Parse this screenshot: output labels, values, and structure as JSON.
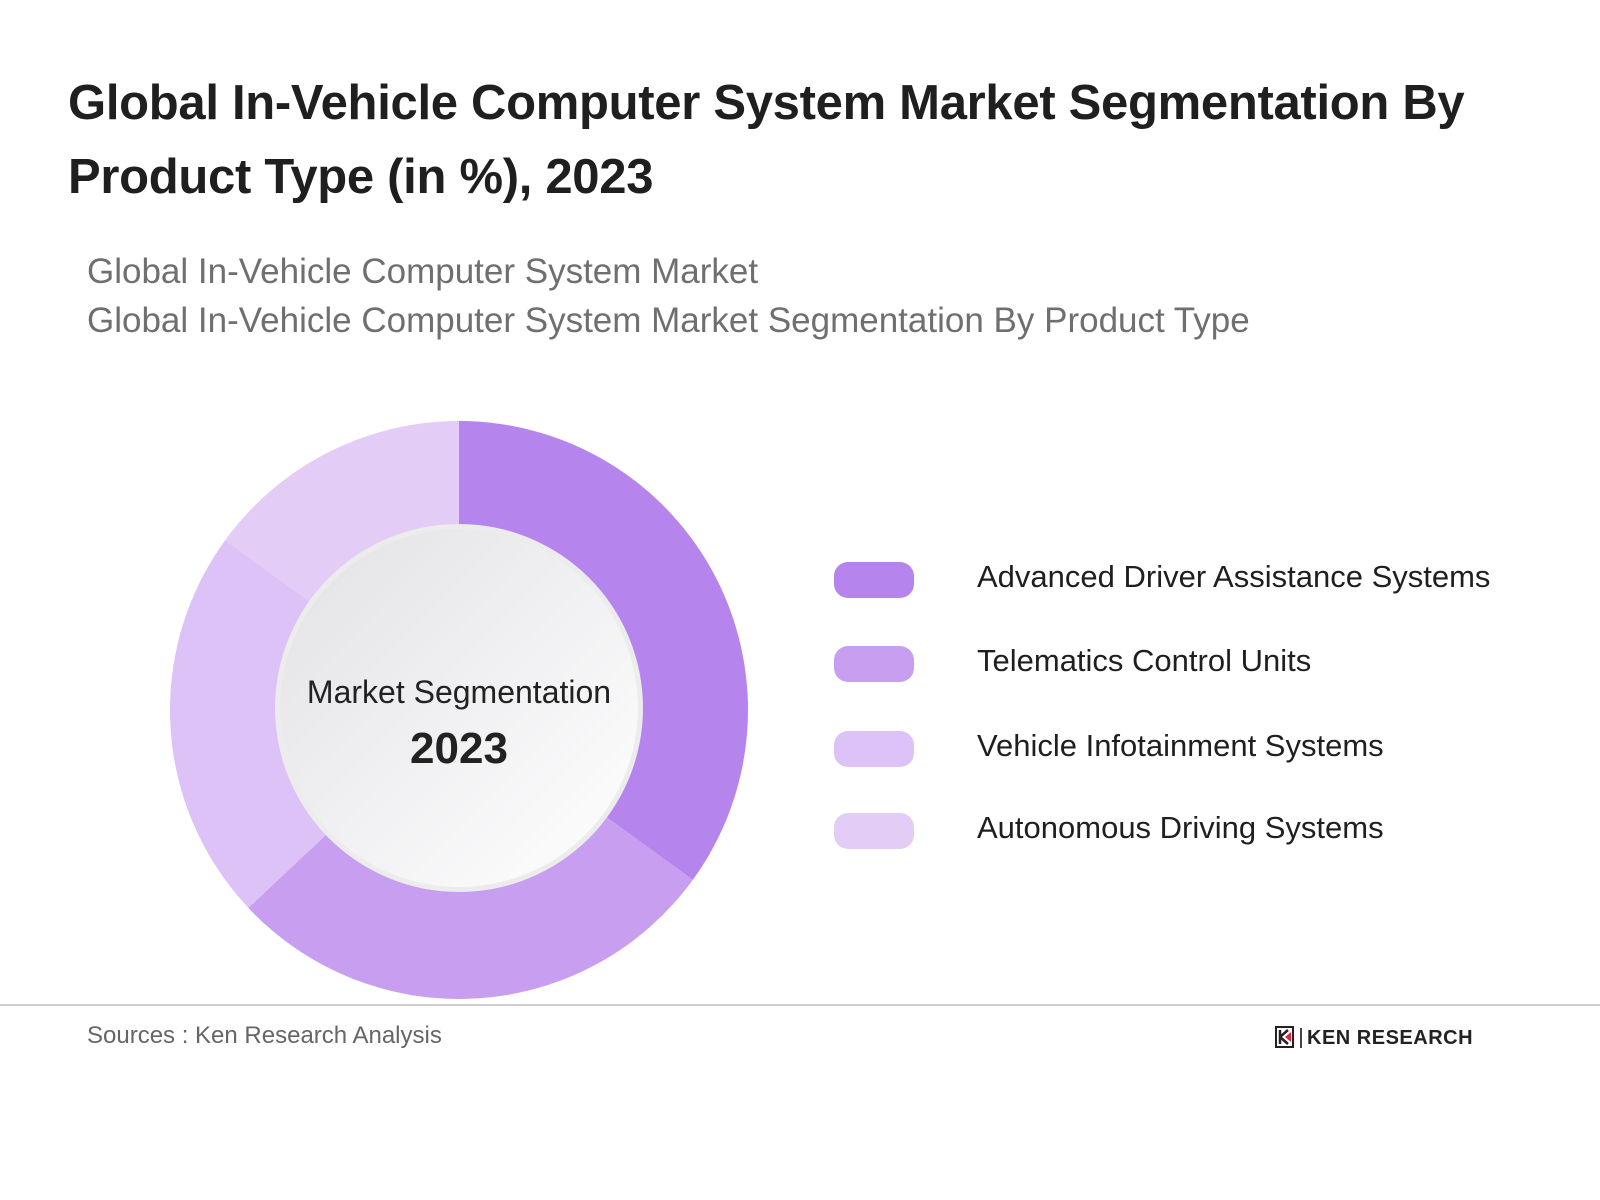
{
  "title": "Global In-Vehicle Computer System Market Segmentation By Product Type (in %), 2023",
  "subtitle_lines": [
    "Global In-Vehicle Computer System Market",
    "Global In-Vehicle Computer System Market Segmentation By Product Type"
  ],
  "chart_data": {
    "type": "pie",
    "variant": "donut",
    "center_label": "Market Segmentation",
    "center_year": "2023",
    "categories": [
      "Advanced Driver Assistance Systems",
      "Telematics Control Units",
      "Vehicle Infotainment Systems",
      "Autonomous Driving Systems"
    ],
    "values": [
      35,
      28,
      22,
      15
    ],
    "colors": [
      "#b584ec",
      "#c79ef0",
      "#dcc2f6",
      "#e3cdf7"
    ],
    "legend_placement": "right"
  },
  "footer": {
    "source": "Sources : Ken Research Analysis",
    "logo_text": "KEN RESEARCH",
    "logo_accent": "#e0283a"
  }
}
